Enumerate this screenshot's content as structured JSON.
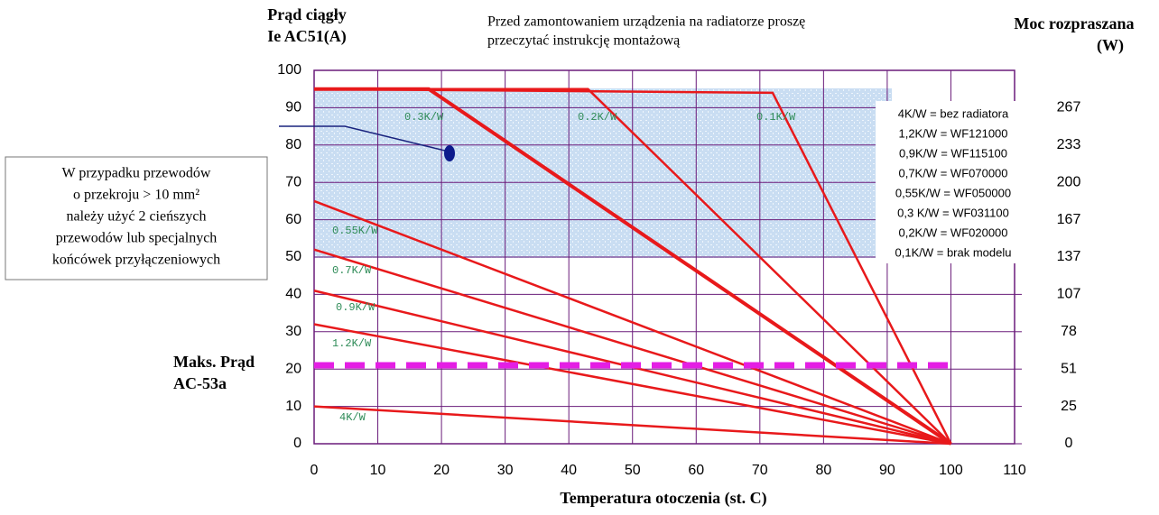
{
  "chart_data": {
    "type": "line",
    "y_label": [
      "Prąd ciągły",
      "Ie AC51(A)"
    ],
    "y2_label": [
      "Moc rozpraszana",
      "(W)"
    ],
    "x_label": "Temperatura otoczenia (st. C)",
    "note": [
      "Przed zamontowaniem urządzenia na radiatorze proszę",
      "przeczytać instrukcję montażową"
    ],
    "side_note": [
      "W przypadku przewodów",
      "o przekroju > 10 mm²",
      "należy użyć 2 cieńszych",
      "przewodów lub specjalnych",
      "końcówek przyłączeniowych"
    ],
    "limit_label": [
      "Maks. Prąd",
      "AC-53a"
    ],
    "legend_entries": [
      "4K/W = bez radiatora",
      "1,2K/W = WF121000",
      "0,9K/W = WF115100",
      "0,7K/W = WF070000",
      "0,55K/W = WF050000",
      "0,3 K/W = WF031100",
      "0,2K/W = WF020000",
      "0,1K/W = brak modelu"
    ],
    "xlim": [
      0,
      110
    ],
    "xticks": [
      0,
      10,
      20,
      30,
      40,
      50,
      60,
      70,
      80,
      90,
      100,
      110
    ],
    "ylim": [
      0,
      100
    ],
    "yticks": [
      0,
      10,
      20,
      30,
      40,
      50,
      60,
      70,
      80,
      90,
      100
    ],
    "y2ticks": [
      0,
      25,
      51,
      78,
      107,
      137,
      167,
      200,
      233,
      267
    ],
    "grid": true,
    "series": [
      {
        "name": "0.3K/W",
        "color": "#e8191b",
        "x": [
          0,
          18,
          100
        ],
        "values": [
          95,
          95,
          0
        ]
      },
      {
        "name": "0.2K/W",
        "color": "#e8191b",
        "x": [
          0,
          43,
          100
        ],
        "values": [
          95,
          95,
          0
        ]
      },
      {
        "name": "0.1K/W",
        "color": "#e8191b",
        "x": [
          0,
          72,
          100
        ],
        "values": [
          95,
          94,
          0
        ]
      },
      {
        "name": "0.55K/W",
        "color": "#e8191b",
        "x": [
          0,
          100
        ],
        "values": [
          65,
          0
        ]
      },
      {
        "name": "0.7K/W",
        "color": "#e8191b",
        "x": [
          0,
          100
        ],
        "values": [
          52,
          0
        ]
      },
      {
        "name": "0.9K/W",
        "color": "#e8191b",
        "x": [
          0,
          100
        ],
        "values": [
          41,
          0
        ]
      },
      {
        "name": "1.2K/W",
        "color": "#e8191b",
        "x": [
          0,
          100
        ],
        "values": [
          32,
          0
        ]
      },
      {
        "name": "4K/W",
        "color": "#e8191b",
        "x": [
          0,
          100
        ],
        "values": [
          10,
          0
        ]
      }
    ],
    "limit_line": {
      "color": "#e41ee4",
      "x": [
        0,
        100
      ],
      "values": [
        21,
        21
      ]
    }
  }
}
